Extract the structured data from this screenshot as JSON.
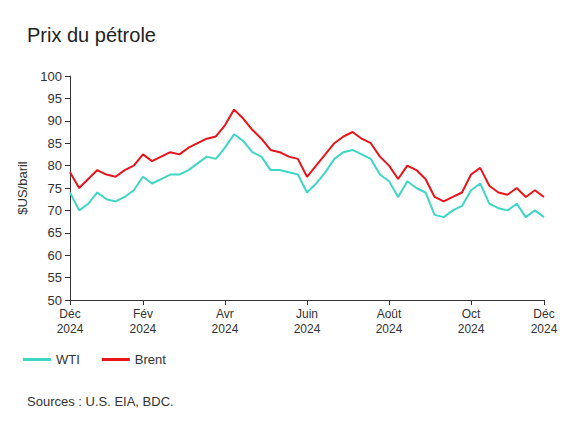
{
  "chart_data": {
    "type": "line",
    "title": "Prix du pétrole",
    "y_label": "$US/baril",
    "source": "Sources : U.S. EIA, BDC.",
    "categories": [
      "Déc\n2024",
      null,
      null,
      null,
      null,
      null,
      null,
      null,
      "Fév\n2024",
      null,
      null,
      null,
      null,
      null,
      null,
      null,
      null,
      "Avr\n2024",
      null,
      null,
      null,
      null,
      null,
      null,
      null,
      null,
      "Juin\n2024",
      null,
      null,
      null,
      null,
      null,
      null,
      null,
      null,
      "Août\n2024",
      null,
      null,
      null,
      null,
      null,
      null,
      null,
      null,
      "Oct\n2024",
      null,
      null,
      null,
      null,
      null,
      null,
      null,
      "Déc\n2024"
    ],
    "series": [
      {
        "name": "WTI",
        "color": "#3fd6c6",
        "values": [
          74,
          70,
          71.5,
          74,
          72.5,
          72,
          73,
          74.5,
          77.5,
          76,
          77,
          78,
          78,
          79,
          80.5,
          82,
          81.5,
          84,
          87,
          85.5,
          83,
          82,
          79,
          79,
          78.5,
          78,
          74,
          76,
          78.5,
          81.5,
          83,
          83.5,
          82.5,
          81.5,
          78,
          76.5,
          73,
          76.5,
          75,
          74,
          69,
          68.5,
          70,
          71,
          74.5,
          76,
          71.5,
          70.5,
          70,
          71.5,
          68.5,
          70,
          68.5
        ]
      },
      {
        "name": "Brent",
        "color": "#e8141b",
        "values": [
          78.5,
          75,
          77,
          79,
          78,
          77.5,
          79,
          80,
          82.5,
          81,
          82,
          83,
          82.5,
          84,
          85,
          86,
          86.5,
          89,
          92.5,
          90.5,
          88,
          86,
          83.5,
          83,
          82,
          81.5,
          77.5,
          80,
          82.5,
          85,
          86.5,
          87.5,
          86,
          85,
          82,
          80,
          77,
          80,
          79,
          77,
          73,
          72,
          73,
          74,
          78,
          79.5,
          75.5,
          74,
          73.5,
          75,
          73,
          74.5,
          73
        ]
      }
    ],
    "ylim": [
      50,
      100
    ],
    "yticks": [
      50,
      55,
      60,
      65,
      70,
      75,
      80,
      85,
      90,
      95,
      100
    ],
    "grid": false,
    "legend": "bottom-left"
  }
}
